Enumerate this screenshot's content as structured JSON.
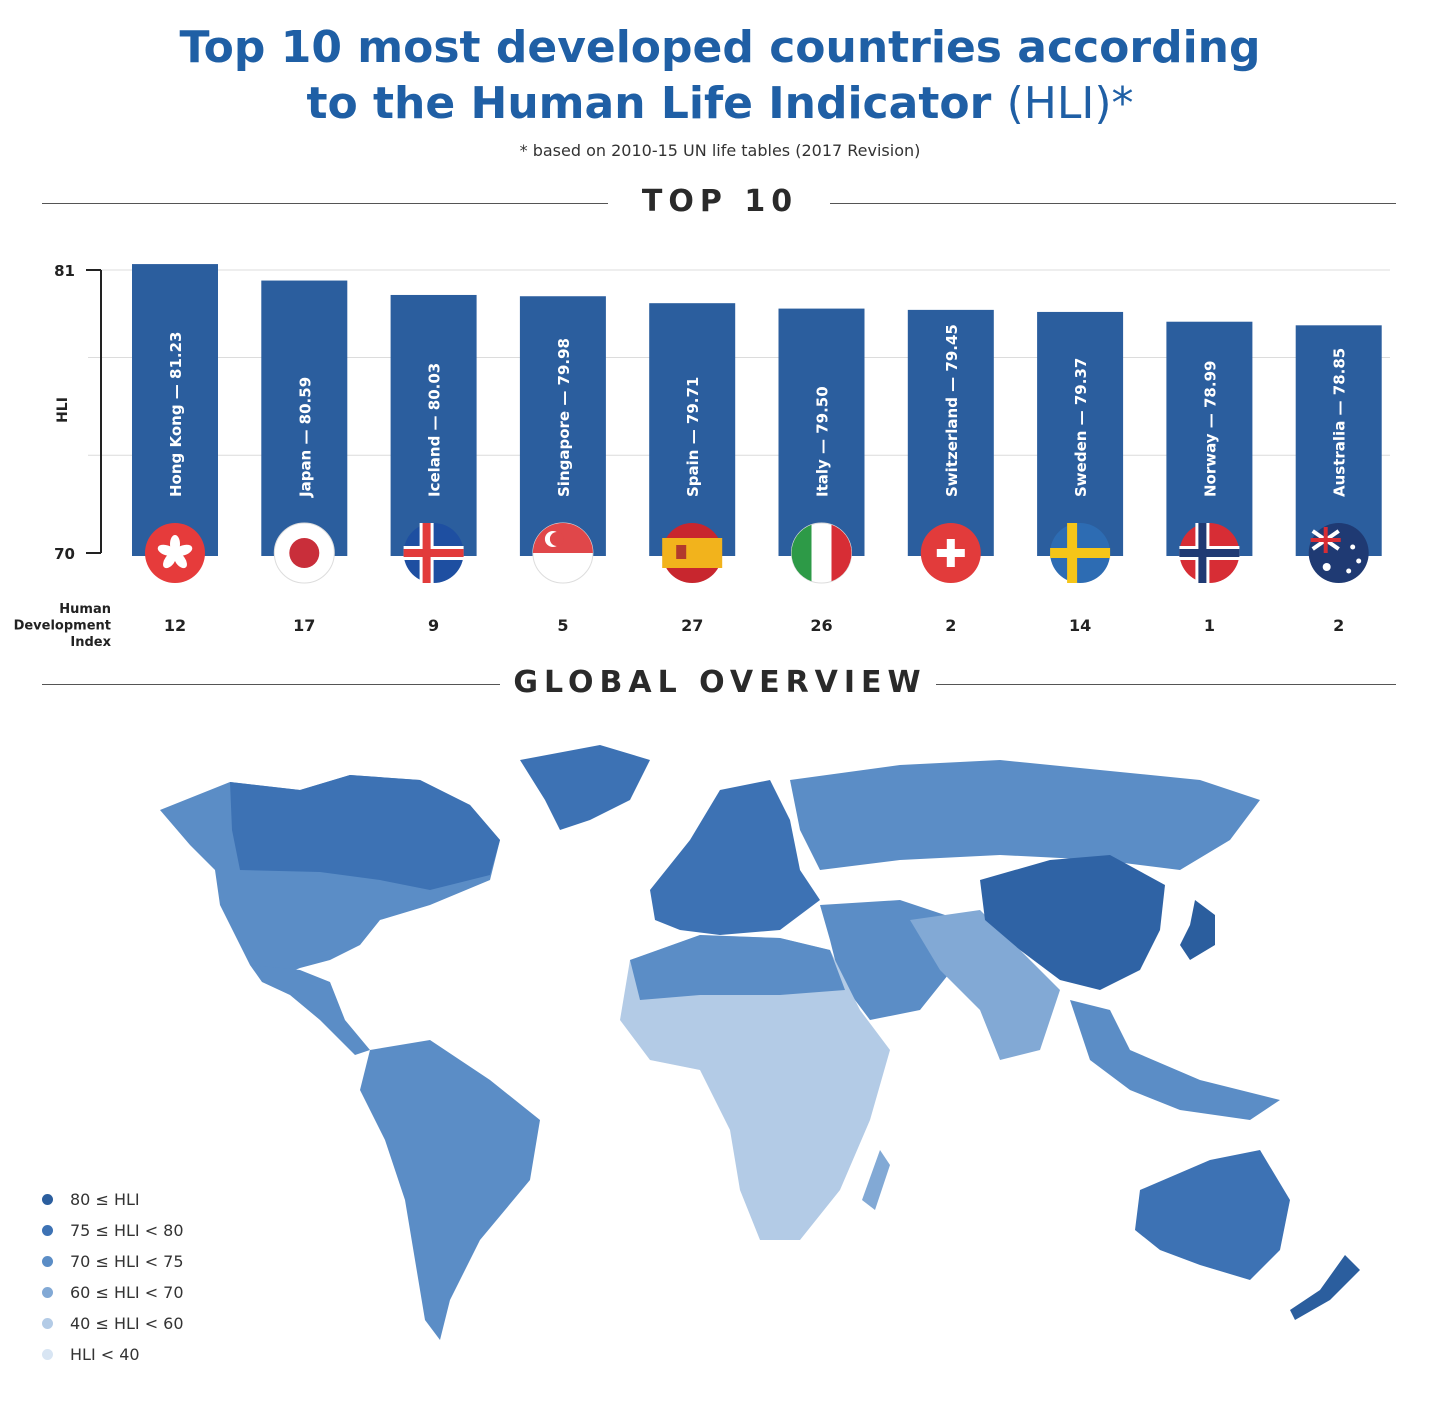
{
  "header": {
    "title_line1": "Top 10 most developed countries according",
    "title_line2_main": "to the Human Life Indicator",
    "title_line2_suffix": "(HLI)*",
    "subtitle": "* based on 2010-15 UN life tables (2017 Revision)"
  },
  "sections": {
    "top10": "TOP 10",
    "overview": "GLOBAL OVERVIEW"
  },
  "chart_data": {
    "type": "bar",
    "title": "TOP 10",
    "ylabel": "HLI",
    "ylim": [
      70,
      81
    ],
    "yticks": [
      "81",
      "70"
    ],
    "categories": [
      "Hong Kong",
      "Japan",
      "Iceland",
      "Singapore",
      "Spain",
      "Italy",
      "Switzerland",
      "Sweden",
      "Norway",
      "Australia"
    ],
    "values": [
      81.23,
      80.59,
      80.03,
      79.98,
      79.71,
      79.5,
      79.45,
      79.37,
      78.99,
      78.85
    ],
    "bar_labels": [
      "Hong Kong — 81.23",
      "Japan — 80.59",
      "Iceland — 80.03",
      "Singapore — 79.98",
      "Spain — 79.71",
      "Italy — 79.50",
      "Switzerland — 79.45",
      "Sweden — 79.37",
      "Norway — 78.99",
      "Australia — 78.85"
    ],
    "hdi_label": [
      "Human",
      "Development",
      "Index"
    ],
    "hdi_values": [
      "12",
      "17",
      "9",
      "5",
      "27",
      "26",
      "2",
      "14",
      "1",
      "2"
    ],
    "flag_icons": [
      "hong-kong-flag-icon",
      "japan-flag-icon",
      "iceland-flag-icon",
      "singapore-flag-icon",
      "spain-flag-icon",
      "italy-flag-icon",
      "switzerland-flag-icon",
      "sweden-flag-icon",
      "norway-flag-icon",
      "australia-flag-icon"
    ],
    "bar_color": "#2b5e9e",
    "grid": true
  },
  "legend": [
    {
      "label": "80 ≤ HLI",
      "color": "#2b5e9e"
    },
    {
      "label": "75 ≤ HLI < 80",
      "color": "#3d72b4"
    },
    {
      "label": "70 ≤ HLI < 75",
      "color": "#5b8dc6"
    },
    {
      "label": "60 ≤ HLI < 70",
      "color": "#82a9d5"
    },
    {
      "label": "40 ≤ HLI < 60",
      "color": "#b3cbe6"
    },
    {
      "label": "HLI < 40",
      "color": "#d8e5f3"
    }
  ]
}
